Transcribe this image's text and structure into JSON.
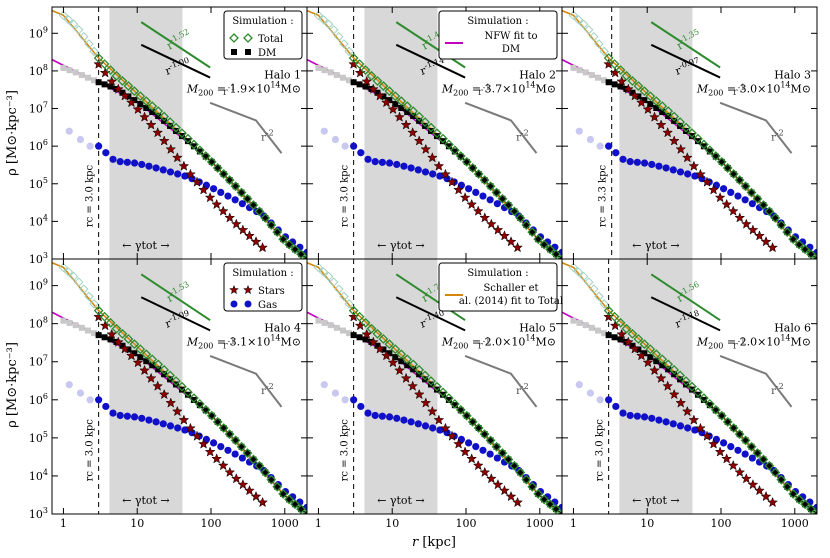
{
  "chart_data": {
    "type": "scatter",
    "xscale": "log",
    "yscale": "log",
    "xlim": [
      0.7,
      2000
    ],
    "ylim": [
      1000,
      5000000000
    ],
    "xlabel": "r [kpc]",
    "ylabel": "ρ [M⊙·kpc⁻³]",
    "xticks": [
      1,
      10,
      100,
      1000
    ],
    "xtick_labels": [
      "1",
      "10",
      "100",
      "1000"
    ],
    "yticks": [
      1000,
      10000,
      100000,
      1000000,
      10000000,
      100000000,
      1000000000
    ],
    "ytick_labels": [
      "10^3",
      "10^4",
      "10^5",
      "10^6",
      "10^7",
      "10^8",
      "10^9"
    ],
    "shaded_band_label": "← γtot →",
    "shaded_band": [
      4.2,
      41
    ],
    "ref_slope_labels": [
      "r^-1",
      "r^-2"
    ],
    "legends": [
      {
        "panel": 1,
        "title": "Simulation :",
        "entries": [
          "Total",
          "DM"
        ]
      },
      {
        "panel": 2,
        "title": "Simulation :",
        "entries": [
          "NFW fit to DM"
        ]
      },
      {
        "panel": 4,
        "title": "Simulation :",
        "entries": [
          "Stars",
          "Gas"
        ]
      },
      {
        "panel": 5,
        "title": "Simulation :",
        "entries": [
          "Schaller et al. (2014) fit to Total"
        ]
      }
    ],
    "panels": [
      {
        "halo": "Halo 1",
        "m200": "1.9",
        "rc_label": "rc = 3.0 kpc",
        "rc": 3.0,
        "slope_total": "r^-1.52",
        "slope_dm": "r^-1.00"
      },
      {
        "halo": "Halo 2",
        "m200": "3.7",
        "rc_label": "rc = 3.0 kpc",
        "rc": 3.0,
        "slope_total": "r^-1.44",
        "slope_dm": "r^-1.14"
      },
      {
        "halo": "Halo 3",
        "m200": "3.0",
        "rc_label": "rc = 3.3 kpc",
        "rc": 3.3,
        "slope_total": "r^-1.35",
        "slope_dm": "r^-0.97"
      },
      {
        "halo": "Halo 4",
        "m200": "3.1",
        "rc_label": "rc = 3.0 kpc",
        "rc": 3.0,
        "slope_total": "r^-1.53",
        "slope_dm": "r^-1.09"
      },
      {
        "halo": "Halo 5",
        "m200": "2.0",
        "rc_label": "rc = 3.0 kpc",
        "rc": 3.0,
        "slope_total": "r^-1.71",
        "slope_dm": "r^-1.40"
      },
      {
        "halo": "Halo 6",
        "m200": "2.0",
        "rc_label": "rc = 3.0 kpc",
        "rc": 3.0,
        "slope_total": "r^-1.56",
        "slope_dm": "r^-1.18"
      }
    ],
    "series": [
      {
        "name": "Total",
        "marker": "open green diamond",
        "r": [
          1,
          1.5,
          2,
          3,
          5,
          10,
          20,
          50,
          100,
          200,
          500,
          1000,
          2000
        ],
        "rho": [
          3000000000,
          1500000000,
          700000000,
          220000000,
          80000000,
          25000000,
          8000000,
          1500000,
          400000,
          100000,
          15000,
          3000,
          1000
        ]
      },
      {
        "name": "DM",
        "marker": "black square",
        "r": [
          1,
          1.5,
          2,
          3,
          5,
          10,
          20,
          50,
          100,
          200,
          500,
          1000,
          2000
        ],
        "rho": [
          120000000,
          90000000,
          70000000,
          50000000,
          35000000,
          15000000,
          6000000,
          1300000,
          400000,
          100000,
          15000,
          3000,
          1000
        ]
      },
      {
        "name": "Stars",
        "marker": "dark red star",
        "r": [
          3,
          5,
          10,
          20,
          50,
          100,
          200,
          500
        ],
        "rho": [
          150000000,
          40000000,
          10000000,
          2000000,
          200000,
          40000,
          10000,
          2000
        ]
      },
      {
        "name": "Gas",
        "marker": "blue circle",
        "r": [
          3,
          5,
          10,
          20,
          50,
          100,
          200,
          500,
          1000,
          2000
        ],
        "rho": [
          1000000,
          400000,
          350000,
          250000,
          150000,
          80000,
          40000,
          15000,
          4000,
          1500
        ]
      },
      {
        "name": "NFW fit to DM",
        "line": "magenta",
        "r": [
          0.7,
          1,
          3,
          10,
          100,
          1000,
          2000
        ],
        "rho": [
          200000000,
          140000000,
          50000000,
          15000000,
          400000,
          3000,
          1000
        ]
      },
      {
        "name": "Schaller et al. (2014) fit to Total",
        "line": "orange",
        "r": [
          0.7,
          1,
          3,
          10,
          100,
          1000,
          2000
        ],
        "rho": [
          4000000000,
          3000000000,
          220000000,
          25000000,
          400000,
          3000,
          1000
        ]
      }
    ],
    "colors": {
      "total": "#2e8b2e",
      "dm": "#000000",
      "stars": "#8b0000",
      "gas": "#1010c8",
      "nfw": "#c000c0",
      "fit": "#d4860b",
      "band": "#d8d8d8",
      "ref": "#7a7a7a"
    }
  }
}
